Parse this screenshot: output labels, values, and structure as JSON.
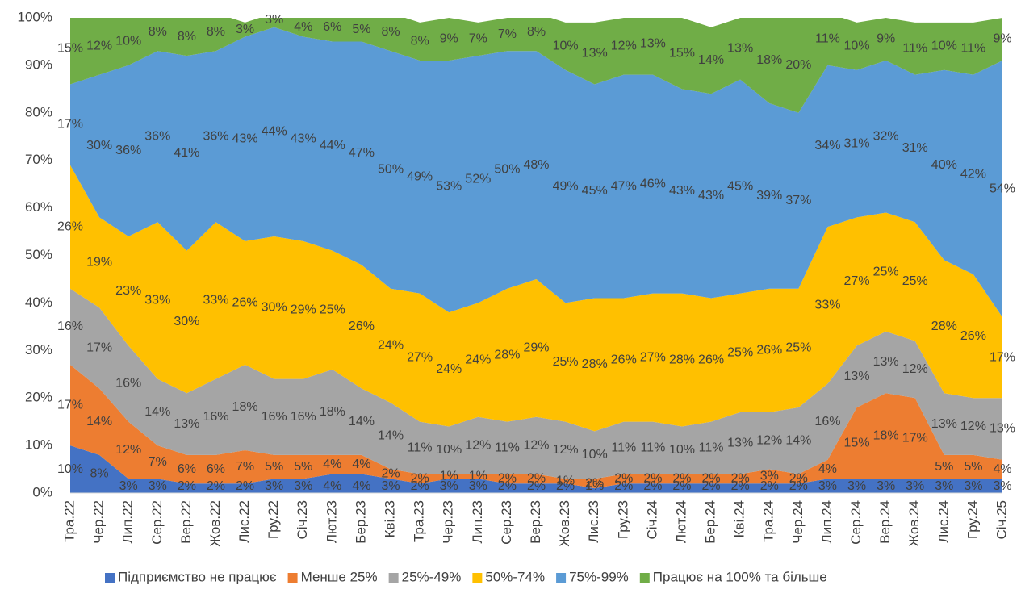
{
  "chart_data": {
    "type": "stacked_area",
    "categories": [
      "Тра.22",
      "Чер.22",
      "Лип.22",
      "Сер.22",
      "Вер.22",
      "Жов.22",
      "Лис.22",
      "Гру.22",
      "Січ.23",
      "Лют.23",
      "Бер.23",
      "Кві.23",
      "Тра.23",
      "Чер.23",
      "Лип.23",
      "Сер.23",
      "Вер.23",
      "Жов.23",
      "Лис.23",
      "Гру.23",
      "Січ.24",
      "Лют.24",
      "Бер.24",
      "Кві.24",
      "Тра.24",
      "Чер.24",
      "Лип.24",
      "Сер.24",
      "Вер.24",
      "Жов.24",
      "Лис.24",
      "Гру.24",
      "Січ.25"
    ],
    "series": [
      {
        "name": "Підприємство не працює",
        "color": "#4472c4",
        "values": [
          10,
          8,
          3,
          3,
          2,
          2,
          2,
          3,
          3,
          4,
          4,
          3,
          2,
          3,
          3,
          2,
          2,
          2,
          1,
          2,
          2,
          2,
          2,
          2,
          2,
          2,
          3,
          3,
          3,
          3,
          3,
          3,
          3
        ],
        "value_labels": [
          "10%",
          "8%",
          "3%",
          "3%",
          "2%",
          "2%",
          "2%",
          "3%",
          "3%",
          "4%",
          "4%",
          "3%",
          "2%",
          "3%",
          "3%",
          "2%",
          "2%",
          "2%",
          "1%",
          "2%",
          "2%",
          "2%",
          "2%",
          "2%",
          "2%",
          "2%",
          "3%",
          "3%",
          "3%",
          "3%",
          "3%",
          "3%",
          "3%"
        ]
      },
      {
        "name": "Менше 25%",
        "color": "#ed7d31",
        "values": [
          17,
          14,
          12,
          7,
          6,
          6,
          7,
          5,
          5,
          4,
          4,
          2,
          2,
          1,
          1,
          2,
          2,
          1,
          2,
          2,
          2,
          2,
          2,
          2,
          3,
          2,
          4,
          15,
          18,
          17,
          5,
          5,
          4
        ],
        "value_labels": [
          "17%",
          "14%",
          "12%",
          "7%",
          "6%",
          "6%",
          "7%",
          "5%",
          "5%",
          "4%",
          "4%",
          "2%",
          "2%",
          "1%",
          "1%",
          "2%",
          "2%",
          "1%",
          "2%",
          "2%",
          "2%",
          "2%",
          "2%",
          "2%",
          "3%",
          "2%",
          "4%",
          "15%",
          "18%",
          "17%",
          "5%",
          "5%",
          "4%"
        ]
      },
      {
        "name": "25%-49%",
        "color": "#a5a5a5",
        "values": [
          16,
          17,
          16,
          14,
          13,
          16,
          18,
          16,
          16,
          18,
          14,
          14,
          11,
          10,
          12,
          11,
          12,
          12,
          10,
          11,
          11,
          10,
          11,
          13,
          12,
          14,
          16,
          13,
          13,
          12,
          13,
          12,
          13
        ],
        "value_labels": [
          "16%",
          "17%",
          "16%",
          "14%",
          "13%",
          "16%",
          "18%",
          "16%",
          "16%",
          "18%",
          "14%",
          "14%",
          "11%",
          "10%",
          "12%",
          "11%",
          "12%",
          "12%",
          "10%",
          "11%",
          "11%",
          "10%",
          "11%",
          "13%",
          "12%",
          "14%",
          "16%",
          "13%",
          "13%",
          "12%",
          "13%",
          "12%",
          "13%"
        ]
      },
      {
        "name": "50%-74%",
        "color": "#ffc000",
        "values": [
          26,
          19,
          23,
          33,
          30,
          33,
          26,
          30,
          29,
          25,
          26,
          24,
          27,
          24,
          24,
          28,
          29,
          25,
          28,
          26,
          27,
          28,
          26,
          25,
          26,
          25,
          33,
          27,
          25,
          25,
          28,
          26,
          17
        ],
        "value_labels": [
          "26%",
          "19%",
          "23%",
          "33%",
          "30%",
          "33%",
          "26%",
          "30%",
          "29%",
          "25%",
          "26%",
          "24%",
          "27%",
          "24%",
          "24%",
          "28%",
          "29%",
          "25%",
          "28%",
          "26%",
          "27%",
          "28%",
          "26%",
          "25%",
          "26%",
          "25%",
          "33%",
          "27%",
          "25%",
          "25%",
          "28%",
          "26%",
          "17%"
        ]
      },
      {
        "name": "75%-99%",
        "color": "#5b9bd5",
        "values": [
          17,
          30,
          36,
          36,
          41,
          36,
          43,
          44,
          43,
          44,
          47,
          50,
          49,
          53,
          52,
          50,
          48,
          49,
          45,
          47,
          46,
          43,
          43,
          45,
          39,
          37,
          34,
          31,
          32,
          31,
          40,
          42,
          54
        ],
        "value_labels": [
          "17%",
          "30%",
          "36%",
          "36%",
          "41%",
          "36%",
          "43%",
          "44%",
          "43%",
          "44%",
          "47%",
          "50%",
          "49%",
          "53%",
          "52%",
          "50%",
          "48%",
          "49%",
          "45%",
          "47%",
          "46%",
          "43%",
          "43%",
          "45%",
          "39%",
          "37%",
          "34%",
          "31%",
          "32%",
          "31%",
          "40%",
          "42%",
          "54%"
        ]
      },
      {
        "name": "Працює на 100% та більше",
        "color": "#70ad47",
        "values": [
          15,
          12,
          10,
          8,
          8,
          8,
          3,
          3,
          4,
          6,
          5,
          8,
          8,
          9,
          7,
          7,
          8,
          10,
          13,
          12,
          13,
          15,
          14,
          13,
          18,
          20,
          11,
          10,
          9,
          11,
          10,
          11,
          9
        ],
        "value_labels": [
          "15%",
          "12%",
          "10%",
          "8%",
          "8%",
          "8%",
          "3%",
          "3%",
          "4%",
          "6%",
          "5%",
          "8%",
          "8%",
          "9%",
          "7%",
          "7%",
          "8%",
          "10%",
          "13%",
          "12%",
          "13%",
          "15%",
          "14%",
          "13%",
          "18%",
          "20%",
          "11%",
          "10%",
          "9%",
          "11%",
          "10%",
          "11%",
          "9%"
        ]
      }
    ],
    "ylim": [
      0,
      100
    ],
    "yticks": [
      {
        "value": 0,
        "label": "0%"
      },
      {
        "value": 10,
        "label": "10%"
      },
      {
        "value": 20,
        "label": "20%"
      },
      {
        "value": 30,
        "label": "30%"
      },
      {
        "value": 40,
        "label": "40%"
      },
      {
        "value": 50,
        "label": "50%"
      },
      {
        "value": 60,
        "label": "60%"
      },
      {
        "value": 70,
        "label": "70%"
      },
      {
        "value": 80,
        "label": "80%"
      },
      {
        "value": 90,
        "label": "90%"
      },
      {
        "value": 100,
        "label": "100%"
      }
    ],
    "legend": "bottom"
  }
}
